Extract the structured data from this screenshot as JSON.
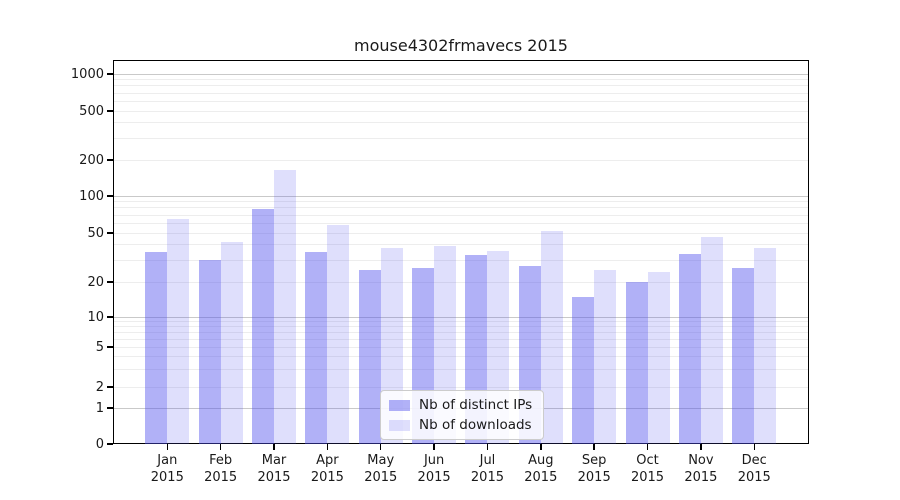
{
  "title": "mouse4302frmavecs 2015",
  "chart_data": {
    "type": "bar",
    "title": "mouse4302frmavecs 2015",
    "categories": [
      "Jan",
      "Feb",
      "Mar",
      "Apr",
      "May",
      "Jun",
      "Jul",
      "Aug",
      "Sep",
      "Oct",
      "Nov",
      "Dec"
    ],
    "category_year": "2015",
    "series": [
      {
        "name": "Nb of distinct IPs",
        "color": "rgba(78,78,236,0.44)",
        "values": [
          35,
          30,
          79,
          35,
          25,
          26,
          33,
          27,
          15,
          20,
          34,
          26
        ]
      },
      {
        "name": "Nb of downloads",
        "color": "rgba(78,78,236,0.18)",
        "values": [
          65,
          42,
          165,
          58,
          38,
          39,
          36,
          52,
          25,
          24,
          46,
          38
        ]
      }
    ],
    "xlabel": "",
    "ylabel": "",
    "yscale": "log",
    "ylim": [
      0,
      1300
    ],
    "yticks": [
      1000,
      500,
      200,
      100,
      50,
      20,
      10,
      5,
      2,
      1,
      0
    ],
    "grid": "horizontal, log minor + major decades",
    "legend_position": "lower center"
  },
  "legend": {
    "item1": "Nb of distinct IPs",
    "item2": "Nb of downloads"
  }
}
